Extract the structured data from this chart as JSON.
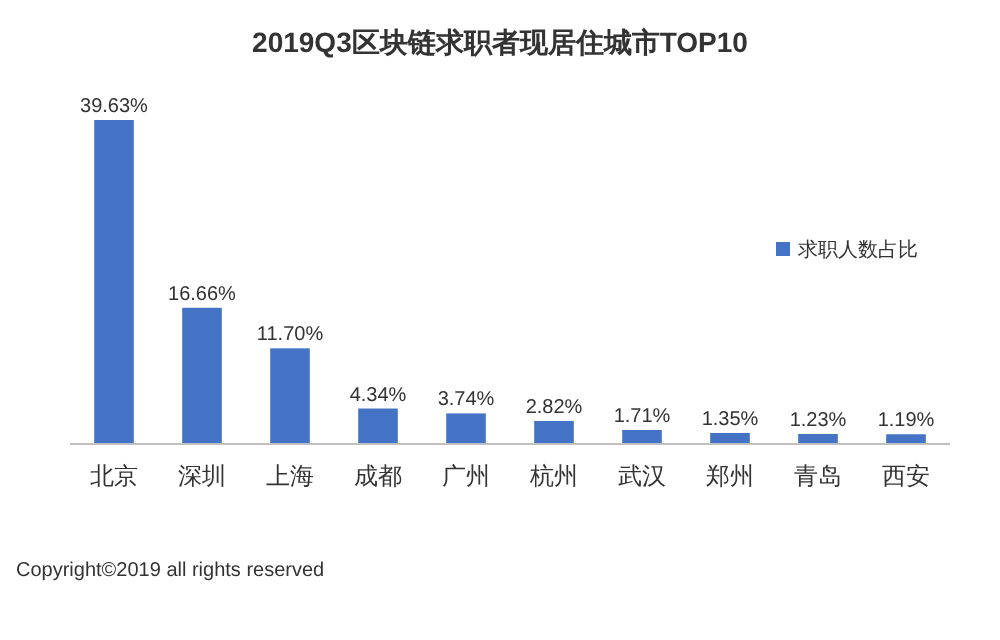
{
  "chart_data": {
    "type": "bar",
    "title": "2019Q3区块链求职者现居住城市TOP10",
    "categories": [
      "北京",
      "深圳",
      "上海",
      "成都",
      "广州",
      "杭州",
      "武汉",
      "郑州",
      "青岛",
      "西安"
    ],
    "series": [
      {
        "name": "求职人数占比",
        "color": "#4472c4",
        "values": [
          39.63,
          16.66,
          11.7,
          4.34,
          3.74,
          2.82,
          1.71,
          1.35,
          1.23,
          1.19
        ],
        "value_labels": [
          "39.63%",
          "16.66%",
          "11.70%",
          "4.34%",
          "3.74%",
          "2.82%",
          "1.71%",
          "1.35%",
          "1.23%",
          "1.19%"
        ]
      }
    ],
    "legend": "right",
    "annotations": [
      "Copyright©2019 all rights reserved"
    ]
  }
}
